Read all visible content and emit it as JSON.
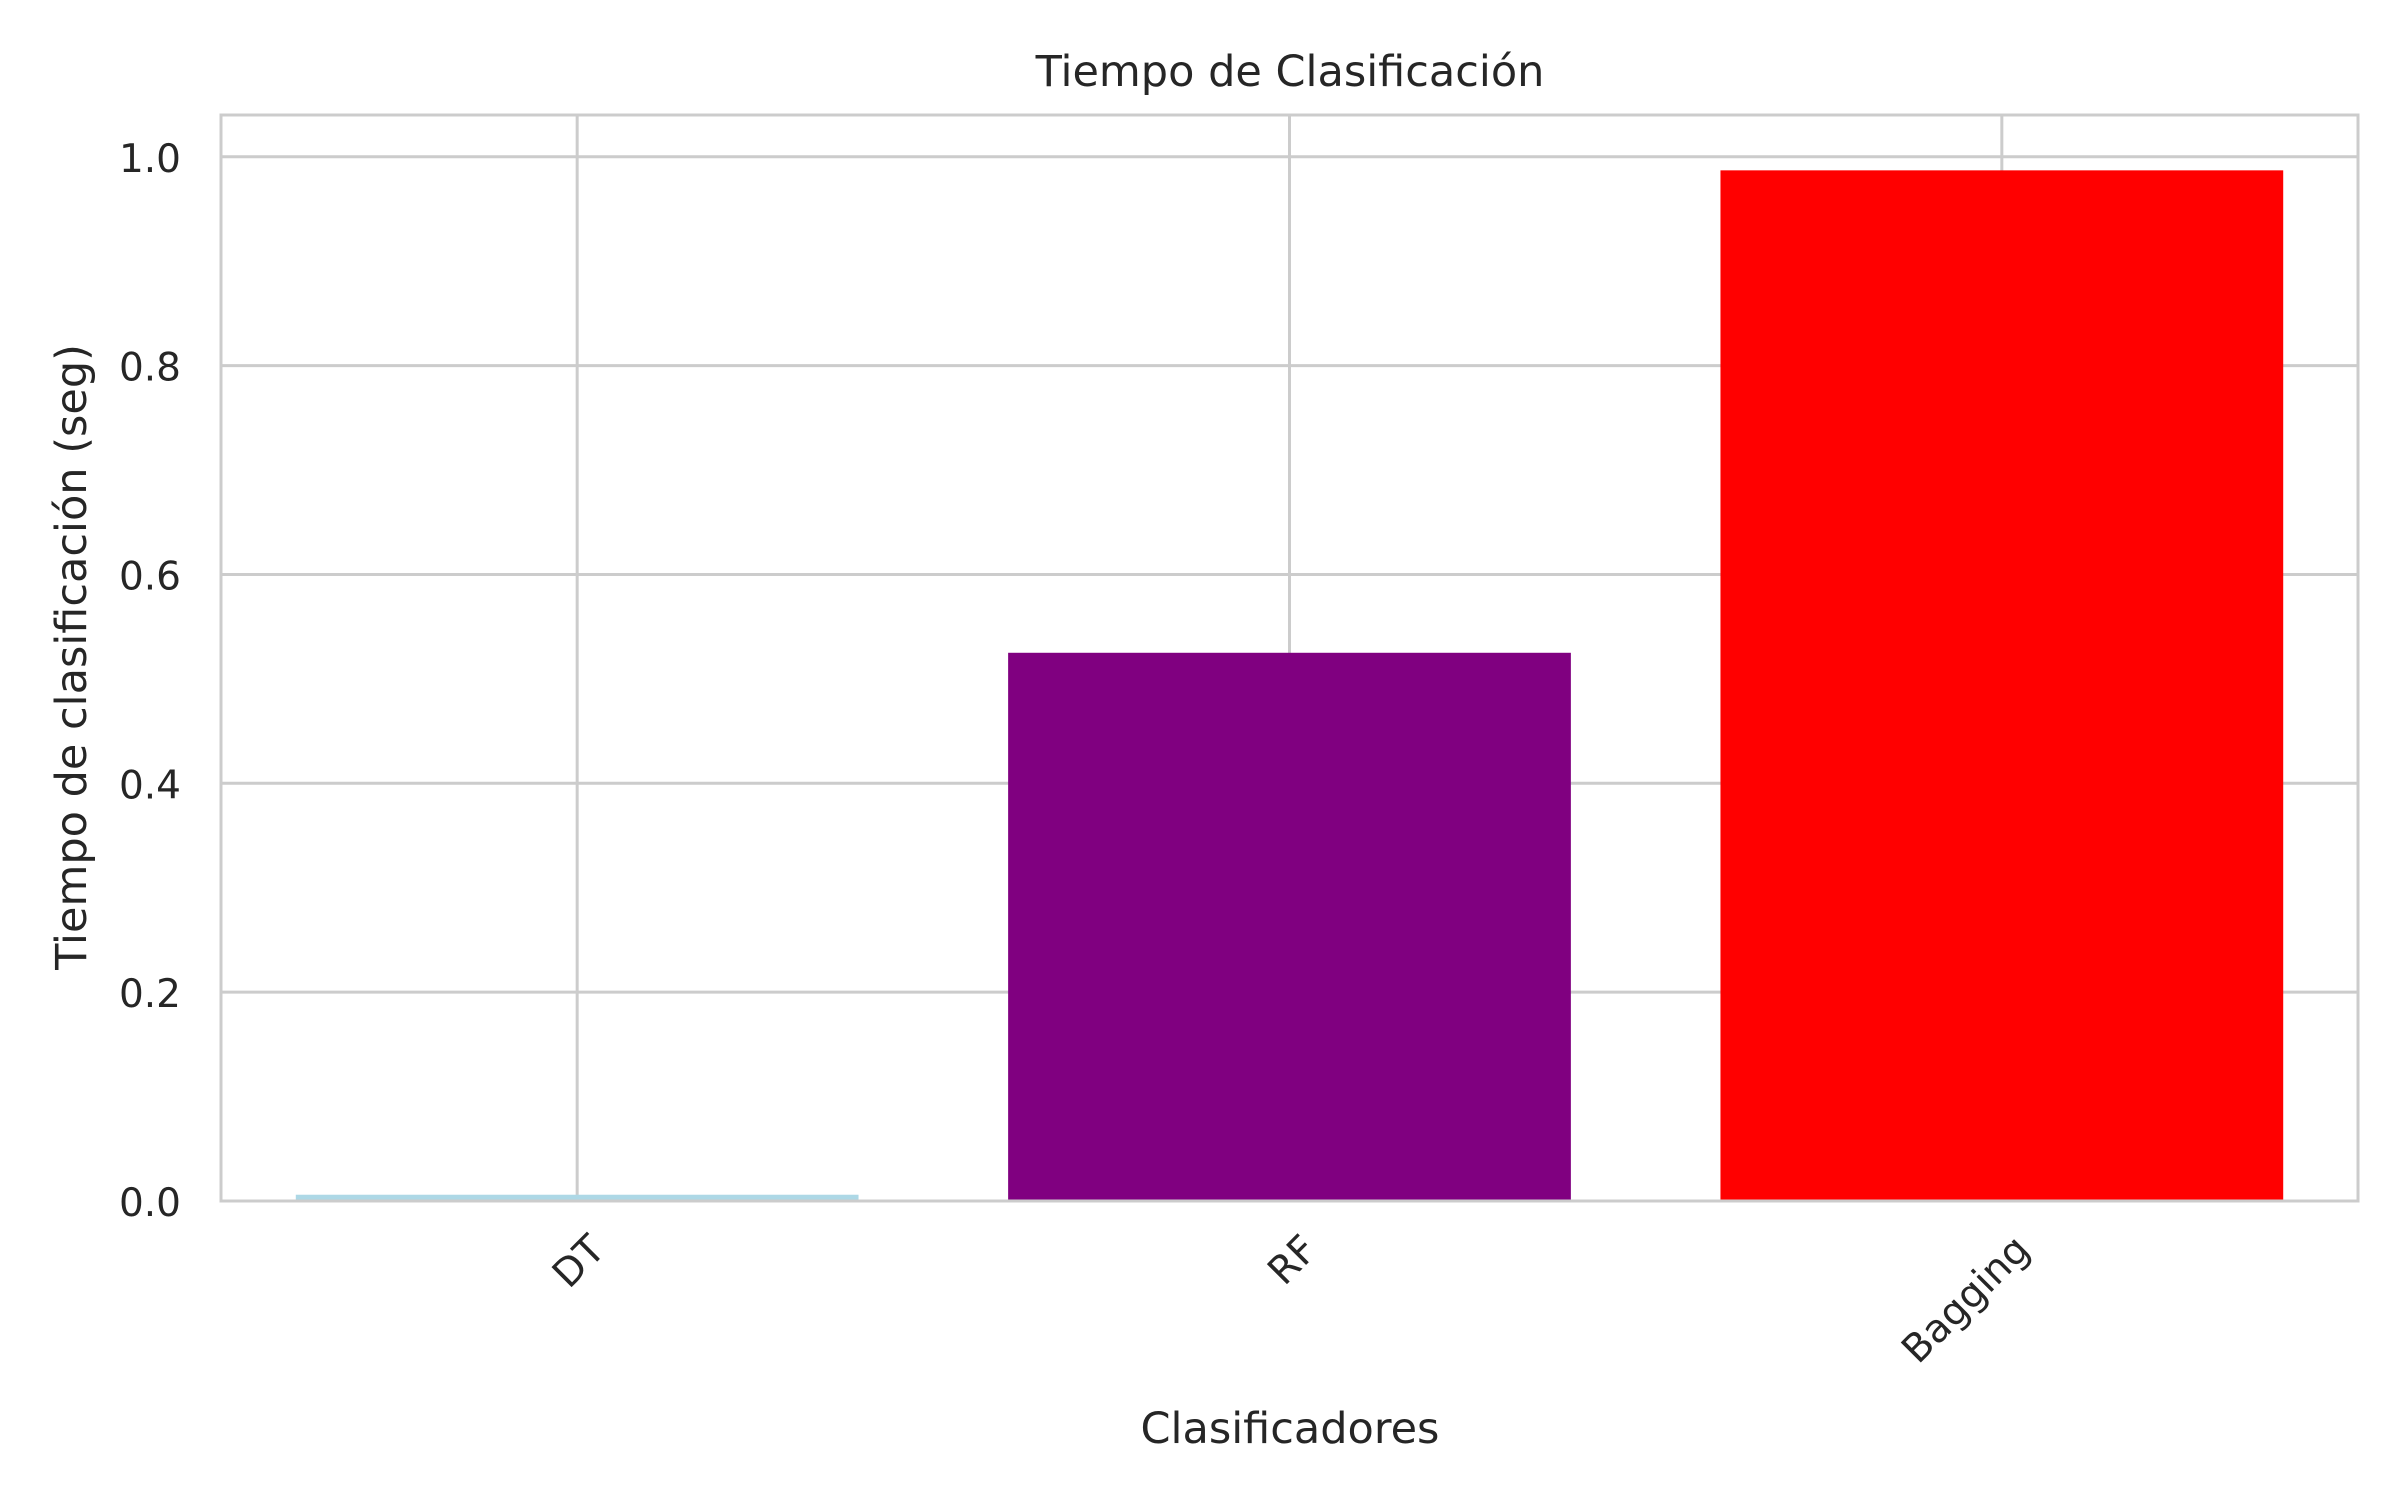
{
  "chart_data": {
    "type": "bar",
    "title": "Tiempo de Clasificación",
    "xlabel": "Clasificadores",
    "ylabel": "Tiempo de clasificación (seg)",
    "categories": [
      "DT",
      "RF",
      "Bagging"
    ],
    "values": [
      0.006,
      0.525,
      0.987
    ],
    "bar_colors": [
      "#add8e6",
      "#800080",
      "#ff0000"
    ],
    "ylim": [
      0,
      1.04
    ],
    "yticks": [
      "0.0",
      "0.2",
      "0.4",
      "0.6",
      "0.8",
      "1.0"
    ],
    "grid": true,
    "legend": "none"
  }
}
